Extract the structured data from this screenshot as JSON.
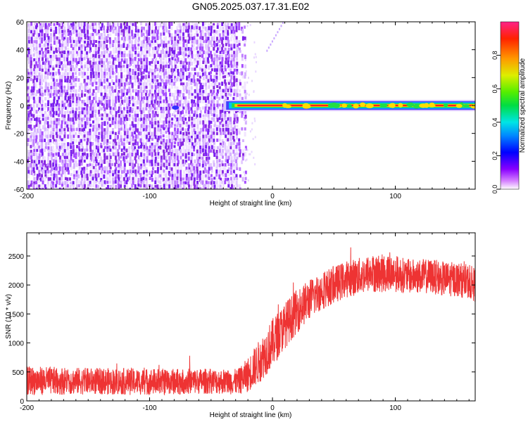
{
  "title": "GN05.2025.037.17.31.E02",
  "chart_data": [
    {
      "type": "heatmap",
      "title": "GN05.2025.037.17.31.E02",
      "xlabel": "Height of straight line (km)",
      "ylabel": "Frequency (Hz)",
      "xlim": [
        -200,
        165
      ],
      "ylim": [
        -60,
        60
      ],
      "x_ticks": [
        "-200",
        "-100",
        "0",
        "100"
      ],
      "y_ticks": [
        "60",
        "40",
        "20",
        "0",
        "-20",
        "-40",
        "-60"
      ],
      "colorbar": {
        "label": "Normalized spectral amplitude",
        "range": [
          0,
          1
        ],
        "ticks": [
          "0.8",
          "0.6",
          "0.4",
          "0.2",
          "0.0"
        ],
        "colormap": "rainbow (magenta-blue-cyan-green-yellow-red)"
      },
      "features": {
        "noise_region_x": [
          -200,
          -25
        ],
        "noise_amplitude": "low (0.0-0.2)",
        "signal_line_frequency_hz": 0,
        "signal_line_x": [
          -40,
          165
        ],
        "signal_amplitude": "high (~0.9)",
        "faint_trace": {
          "x": [
            -5,
            8
          ],
          "frequency_hz": [
            40,
            60
          ]
        }
      }
    },
    {
      "type": "line",
      "xlabel": "Height of straight line (km)",
      "ylabel": "SNR (10 * v/v)",
      "xlim": [
        -200,
        165
      ],
      "ylim": [
        0,
        2900
      ],
      "x_ticks": [
        "-200",
        "-100",
        "0",
        "100"
      ],
      "y_ticks": [
        "0",
        "500",
        "1000",
        "1500",
        "2000",
        "2500"
      ],
      "series_color": "#ee3333",
      "envelope": {
        "x": [
          -200,
          -150,
          -100,
          -50,
          -28,
          -20,
          -10,
          0,
          10,
          20,
          30,
          40,
          50,
          60,
          70,
          80,
          90,
          100,
          110,
          120,
          130,
          140,
          150,
          160,
          165
        ],
        "mean": [
          350,
          340,
          330,
          340,
          330,
          450,
          700,
          1000,
          1300,
          1550,
          1750,
          1900,
          2000,
          2100,
          2150,
          2200,
          2200,
          2200,
          2150,
          2150,
          2150,
          2100,
          2100,
          2050,
          2000
        ],
        "amplitude": [
          250,
          230,
          230,
          220,
          220,
          300,
          380,
          420,
          400,
          380,
          350,
          330,
          320,
          320,
          320,
          330,
          330,
          320,
          300,
          300,
          300,
          300,
          300,
          300,
          300
        ]
      }
    }
  ]
}
